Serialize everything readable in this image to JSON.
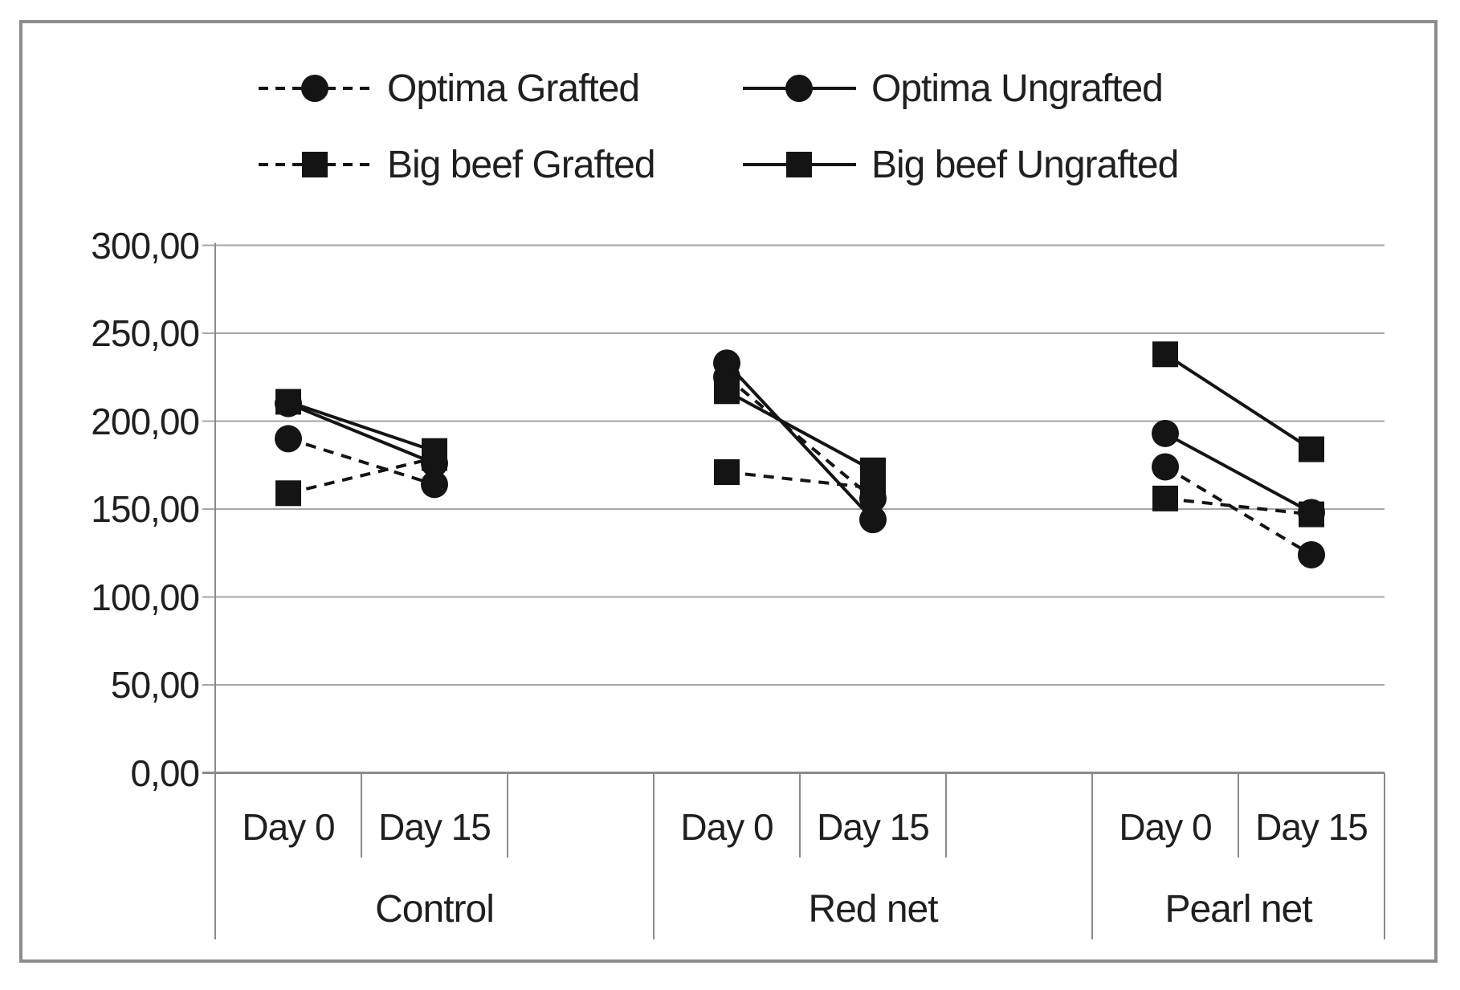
{
  "chart_data": {
    "type": "line",
    "title": "",
    "xlabel": "",
    "ylabel": "",
    "ylim": [
      0,
      300
    ],
    "y_ticks": [
      "300,00",
      "250,00",
      "200,00",
      "150,00",
      "100,00",
      "50,00",
      "0,00"
    ],
    "y_tick_values": [
      300,
      250,
      200,
      150,
      100,
      50,
      0
    ],
    "decimal_style": "comma",
    "grid": true,
    "legend_position": "top",
    "groups": [
      "Control",
      "Red net",
      "Pearl net"
    ],
    "day_categories": [
      "Day 0",
      "Day 15"
    ],
    "series": [
      {
        "name": "Optima Grafted",
        "line_style": "dashed",
        "marker": "circle",
        "values": [
          [
            190,
            164
          ],
          [
            225,
            156
          ],
          [
            174,
            124
          ]
        ]
      },
      {
        "name": "Optima Ungrafted",
        "line_style": "solid",
        "marker": "circle",
        "values": [
          [
            210,
            176
          ],
          [
            233,
            144
          ],
          [
            193,
            148
          ]
        ]
      },
      {
        "name": "Big beef Grafted",
        "line_style": "dashed",
        "marker": "square",
        "values": [
          [
            159,
            179
          ],
          [
            171,
            162
          ],
          [
            156,
            147
          ]
        ]
      },
      {
        "name": "Big beef Ungrafted",
        "line_style": "solid",
        "marker": "square",
        "values": [
          [
            211,
            183
          ],
          [
            217,
            172
          ],
          [
            238,
            184
          ]
        ]
      }
    ],
    "colors": {
      "series": "#141414",
      "gridline": "#a6a6a6",
      "axis": "#8a8a8a",
      "text": "#1f1f1f",
      "frame_border": "#8c8c8c",
      "background": "#ffffff"
    }
  }
}
